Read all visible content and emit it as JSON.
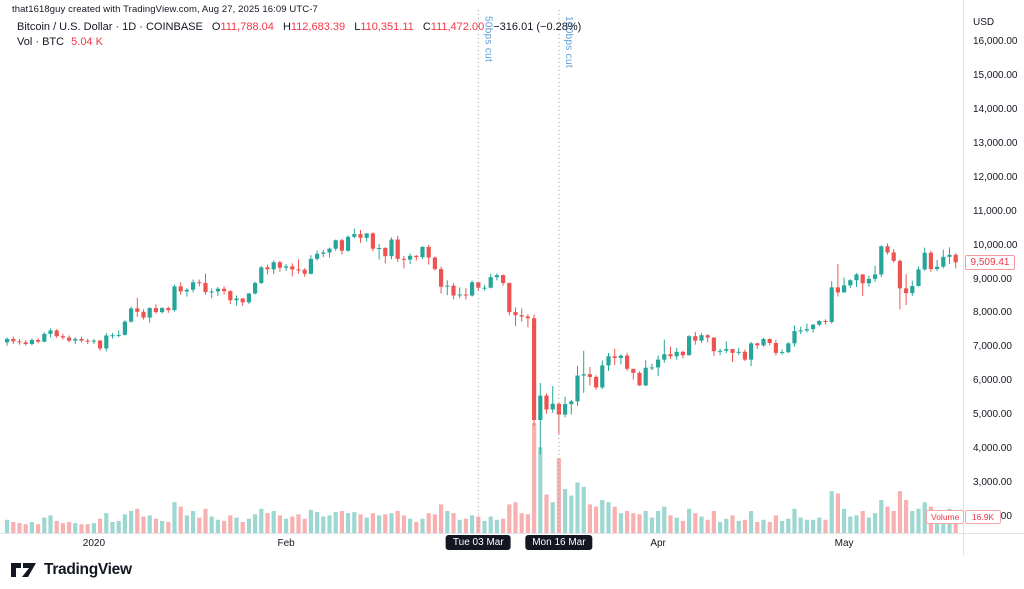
{
  "attribution": "that1618guy created with TradingView.com, Aug 27, 2025 16:09 UTC-7",
  "legend": {
    "title": "Bitcoin / U.S. Dollar · 1D · COINBASE",
    "ohlc": [
      {
        "k": "O",
        "v": "111,788.04"
      },
      {
        "k": "H",
        "v": "112,683.39"
      },
      {
        "k": "L",
        "v": "110,351.11"
      },
      {
        "k": "C",
        "v": "111,472.00"
      }
    ],
    "change": "−316.01 (−0.28%)",
    "vol_label": "Vol · BTC",
    "vol_value": "5.04 K"
  },
  "price_axis": {
    "currency": "USD",
    "ticks": [
      "16,000.00",
      "15,000.00",
      "14,000.00",
      "13,000.00",
      "12,000.00",
      "11,000.00",
      "10,000.00",
      "9,000.00",
      "8,000.00",
      "7,000.00",
      "6,000.00",
      "5,000.00",
      "4,000.00",
      "3,000.00",
      "2,000.00"
    ],
    "last_price_label": "9,509.41",
    "volume_label": "Volume",
    "volume_value": "16.9K"
  },
  "time_axis": {
    "labels": [
      {
        "text": "2020",
        "index": 14,
        "style": "label"
      },
      {
        "text": "Feb",
        "index": 45,
        "style": "label"
      },
      {
        "text": "Tue 03 Mar",
        "index": 76,
        "style": "badge"
      },
      {
        "text": "Mon 16 Mar",
        "index": 89,
        "style": "badge"
      },
      {
        "text": "Apr",
        "index": 105,
        "style": "label"
      },
      {
        "text": "May",
        "index": 135,
        "style": "label"
      }
    ]
  },
  "annotations": [
    {
      "text": "50bps cut",
      "index": 76
    },
    {
      "text": "100bps cut",
      "index": 89
    }
  ],
  "logo": {
    "text": "TradingView"
  },
  "colors": {
    "up": "#26a69a",
    "down": "#ef5350",
    "vol_up": "rgba(38,166,154,0.45)",
    "vol_down": "rgba(239,83,80,0.45)",
    "accent_red": "#f23645",
    "annotation_blue": "#5f9fd6",
    "event_line": "#9b9ea7",
    "badge_bg": "#131722"
  },
  "chart_data": {
    "type": "candlestick+volume",
    "title": "Bitcoin / U.S. Dollar, 1D, COINBASE",
    "unit": "USD",
    "price_scale": {
      "top": 17240,
      "bottom": 1530
    },
    "volume_note": "volumes in K BTC, last bar = 16.9K",
    "candles_format": [
      "open",
      "high",
      "low",
      "close",
      "volume"
    ],
    "candles": [
      [
        7150,
        7300,
        7050,
        7250,
        12
      ],
      [
        7250,
        7320,
        7100,
        7180,
        10
      ],
      [
        7180,
        7250,
        7080,
        7150,
        9
      ],
      [
        7150,
        7220,
        7050,
        7100,
        8
      ],
      [
        7100,
        7260,
        7060,
        7220,
        10
      ],
      [
        7220,
        7280,
        7120,
        7170,
        8
      ],
      [
        7170,
        7440,
        7150,
        7400,
        14
      ],
      [
        7400,
        7560,
        7300,
        7500,
        16
      ],
      [
        7500,
        7540,
        7280,
        7330,
        11
      ],
      [
        7330,
        7400,
        7230,
        7290,
        9
      ],
      [
        7290,
        7350,
        7150,
        7200,
        10
      ],
      [
        7200,
        7300,
        7100,
        7250,
        9
      ],
      [
        7250,
        7320,
        7150,
        7200,
        8
      ],
      [
        7200,
        7260,
        7100,
        7180,
        8
      ],
      [
        7180,
        7250,
        7100,
        7200,
        9
      ],
      [
        7200,
        7220,
        6900,
        6970,
        13
      ],
      [
        6970,
        7420,
        6880,
        7350,
        18
      ],
      [
        7350,
        7420,
        7260,
        7360,
        10
      ],
      [
        7360,
        7500,
        7300,
        7370,
        11
      ],
      [
        7370,
        7800,
        7350,
        7760,
        17
      ],
      [
        7760,
        8200,
        7730,
        8150,
        20
      ],
      [
        8150,
        8460,
        7900,
        8050,
        22
      ],
      [
        8050,
        8120,
        7820,
        7880,
        15
      ],
      [
        7880,
        8180,
        7730,
        8160,
        16
      ],
      [
        8160,
        8270,
        8000,
        8040,
        13
      ],
      [
        8040,
        8190,
        8000,
        8160,
        11
      ],
      [
        8160,
        8200,
        8020,
        8100,
        10
      ],
      [
        8100,
        8850,
        8050,
        8800,
        28
      ],
      [
        8800,
        8920,
        8550,
        8650,
        24
      ],
      [
        8650,
        8750,
        8500,
        8700,
        16
      ],
      [
        8700,
        9000,
        8620,
        8920,
        20
      ],
      [
        8920,
        9000,
        8800,
        8900,
        14
      ],
      [
        8900,
        9180,
        8550,
        8630,
        22
      ],
      [
        8630,
        8740,
        8450,
        8650,
        15
      ],
      [
        8650,
        8780,
        8520,
        8730,
        12
      ],
      [
        8730,
        8800,
        8560,
        8660,
        11
      ],
      [
        8660,
        8680,
        8280,
        8390,
        16
      ],
      [
        8390,
        8530,
        8230,
        8440,
        14
      ],
      [
        8440,
        8460,
        8220,
        8330,
        10
      ],
      [
        8330,
        8600,
        8280,
        8590,
        13
      ],
      [
        8590,
        8940,
        8560,
        8900,
        17
      ],
      [
        8900,
        9400,
        8870,
        9360,
        22
      ],
      [
        9360,
        9440,
        9150,
        9300,
        18
      ],
      [
        9300,
        9570,
        9160,
        9510,
        20
      ],
      [
        9510,
        9550,
        9230,
        9350,
        16
      ],
      [
        9350,
        9450,
        9250,
        9390,
        13
      ],
      [
        9390,
        9480,
        9090,
        9300,
        15
      ],
      [
        9300,
        9600,
        9180,
        9290,
        17
      ],
      [
        9290,
        9340,
        9080,
        9170,
        13
      ],
      [
        9170,
        9720,
        9150,
        9610,
        21
      ],
      [
        9610,
        9860,
        9560,
        9760,
        19
      ],
      [
        9760,
        9880,
        9660,
        9800,
        15
      ],
      [
        9800,
        9940,
        9650,
        9910,
        16
      ],
      [
        9910,
        10180,
        9850,
        10160,
        19
      ],
      [
        10160,
        10200,
        9740,
        9850,
        20
      ],
      [
        9850,
        10300,
        9820,
        10260,
        18
      ],
      [
        10260,
        10500,
        10220,
        10340,
        19
      ],
      [
        10340,
        10460,
        10080,
        10230,
        17
      ],
      [
        10230,
        10370,
        10120,
        10360,
        14
      ],
      [
        10360,
        10390,
        9830,
        9910,
        18
      ],
      [
        9910,
        10050,
        9590,
        9930,
        16
      ],
      [
        9930,
        9960,
        9470,
        9690,
        17
      ],
      [
        9690,
        10240,
        9600,
        10180,
        18
      ],
      [
        10180,
        10290,
        9520,
        9610,
        20
      ],
      [
        9610,
        9690,
        9330,
        9590,
        16
      ],
      [
        9590,
        9770,
        9460,
        9700,
        13
      ],
      [
        9700,
        9720,
        9560,
        9660,
        10
      ],
      [
        9660,
        9990,
        9610,
        9960,
        13
      ],
      [
        9960,
        10030,
        9440,
        9650,
        18
      ],
      [
        9650,
        9680,
        9260,
        9310,
        17
      ],
      [
        9310,
        9380,
        8590,
        8790,
        26
      ],
      [
        8790,
        8980,
        8540,
        8820,
        20
      ],
      [
        8820,
        8890,
        8420,
        8530,
        18
      ],
      [
        8530,
        8770,
        8450,
        8560,
        12
      ],
      [
        8560,
        8750,
        8410,
        8530,
        13
      ],
      [
        8530,
        8970,
        8500,
        8920,
        16
      ],
      [
        8920,
        8940,
        8660,
        8760,
        15
      ],
      [
        8760,
        8840,
        8670,
        8760,
        11
      ],
      [
        8760,
        9170,
        8740,
        9070,
        15
      ],
      [
        9070,
        9180,
        8980,
        9130,
        12
      ],
      [
        9130,
        9150,
        8820,
        8900,
        13
      ],
      [
        8900,
        8910,
        7940,
        8040,
        26
      ],
      [
        8040,
        8180,
        7630,
        7950,
        28
      ],
      [
        7950,
        8150,
        7760,
        7910,
        18
      ],
      [
        7910,
        7980,
        7590,
        7860,
        17
      ],
      [
        7860,
        7970,
        4700,
        4860,
        100
      ],
      [
        4860,
        5950,
        3850,
        5580,
        78
      ],
      [
        5580,
        5640,
        5050,
        5170,
        35
      ],
      [
        5170,
        5860,
        5070,
        5340,
        28
      ],
      [
        5340,
        5370,
        4450,
        5020,
        68
      ],
      [
        5020,
        5550,
        4940,
        5330,
        40
      ],
      [
        5330,
        5450,
        5020,
        5410,
        34
      ],
      [
        5410,
        6450,
        5280,
        6170,
        46
      ],
      [
        6170,
        6900,
        5660,
        6210,
        42
      ],
      [
        6210,
        6420,
        5880,
        6130,
        26
      ],
      [
        6130,
        6180,
        5750,
        5820,
        24
      ],
      [
        5820,
        6620,
        5770,
        6470,
        30
      ],
      [
        6470,
        6840,
        6310,
        6740,
        28
      ],
      [
        6740,
        6960,
        6480,
        6690,
        24
      ],
      [
        6690,
        6790,
        6500,
        6760,
        18
      ],
      [
        6760,
        6840,
        6310,
        6370,
        20
      ],
      [
        6370,
        6370,
        6050,
        6250,
        18
      ],
      [
        6250,
        6290,
        5870,
        5880,
        17
      ],
      [
        5880,
        6620,
        5860,
        6400,
        20
      ],
      [
        6400,
        6520,
        6330,
        6410,
        14
      ],
      [
        6410,
        6760,
        6150,
        6640,
        20
      ],
      [
        6640,
        7230,
        6550,
        6800,
        24
      ],
      [
        6800,
        7020,
        6660,
        6740,
        16
      ],
      [
        6740,
        6990,
        6640,
        6870,
        14
      ],
      [
        6870,
        6900,
        6680,
        6770,
        11
      ],
      [
        6770,
        7360,
        6760,
        7330,
        22
      ],
      [
        7330,
        7460,
        7080,
        7200,
        18
      ],
      [
        7200,
        7420,
        7130,
        7360,
        15
      ],
      [
        7360,
        7390,
        7150,
        7290,
        12
      ],
      [
        7290,
        7300,
        6750,
        6890,
        20
      ],
      [
        6890,
        6960,
        6770,
        6900,
        10
      ],
      [
        6900,
        7180,
        6830,
        6950,
        13
      ],
      [
        6950,
        6960,
        6570,
        6840,
        16
      ],
      [
        6840,
        6990,
        6770,
        6870,
        11
      ],
      [
        6870,
        6940,
        6600,
        6640,
        12
      ],
      [
        6640,
        7160,
        6450,
        7120,
        20
      ],
      [
        7120,
        7140,
        6960,
        7060,
        10
      ],
      [
        7060,
        7290,
        7020,
        7250,
        12
      ],
      [
        7250,
        7270,
        7060,
        7130,
        10
      ],
      [
        7130,
        7220,
        6760,
        6840,
        16
      ],
      [
        6840,
        6940,
        6790,
        6860,
        11
      ],
      [
        6860,
        7150,
        6830,
        7120,
        13
      ],
      [
        7120,
        7650,
        7020,
        7480,
        22
      ],
      [
        7480,
        7610,
        7390,
        7500,
        14
      ],
      [
        7500,
        7700,
        7440,
        7540,
        12
      ],
      [
        7540,
        7690,
        7440,
        7670,
        12
      ],
      [
        7670,
        7800,
        7620,
        7780,
        14
      ],
      [
        7780,
        7830,
        7670,
        7750,
        12
      ],
      [
        7750,
        8950,
        7700,
        8770,
        38
      ],
      [
        8770,
        9460,
        8500,
        8620,
        36
      ],
      [
        8620,
        9060,
        8620,
        8830,
        22
      ],
      [
        8830,
        9010,
        8750,
        8980,
        15
      ],
      [
        8980,
        9190,
        8780,
        9150,
        16
      ],
      [
        9150,
        9160,
        8520,
        8890,
        20
      ],
      [
        8890,
        9110,
        8790,
        9020,
        14
      ],
      [
        9020,
        9410,
        8930,
        9150,
        18
      ],
      [
        9150,
        10010,
        9070,
        9980,
        30
      ],
      [
        9980,
        10070,
        9740,
        9800,
        24
      ],
      [
        9800,
        9900,
        9500,
        9550,
        20
      ],
      [
        9550,
        9590,
        8120,
        8740,
        38
      ],
      [
        8740,
        9160,
        8250,
        8600,
        30
      ],
      [
        8600,
        8970,
        8520,
        8810,
        20
      ],
      [
        8810,
        9390,
        8790,
        9300,
        22
      ],
      [
        9300,
        9940,
        9260,
        9790,
        28
      ],
      [
        9790,
        9850,
        9230,
        9310,
        24
      ],
      [
        9310,
        9580,
        9250,
        9380,
        16
      ],
      [
        9380,
        9880,
        9330,
        9670,
        18
      ],
      [
        9670,
        9950,
        9460,
        9730,
        22
      ],
      [
        9730,
        9780,
        9330,
        9509,
        16.9
      ]
    ],
    "x_axis_labels": [
      "2020",
      "Feb",
      "Tue 03 Mar",
      "Mon 16 Mar",
      "Apr",
      "May"
    ],
    "ylim": [
      1530,
      17240
    ],
    "grid": "off",
    "events": [
      "50bps cut @ Tue 03 Mar 2020",
      "100bps cut @ Mon 16 Mar 2020"
    ]
  }
}
